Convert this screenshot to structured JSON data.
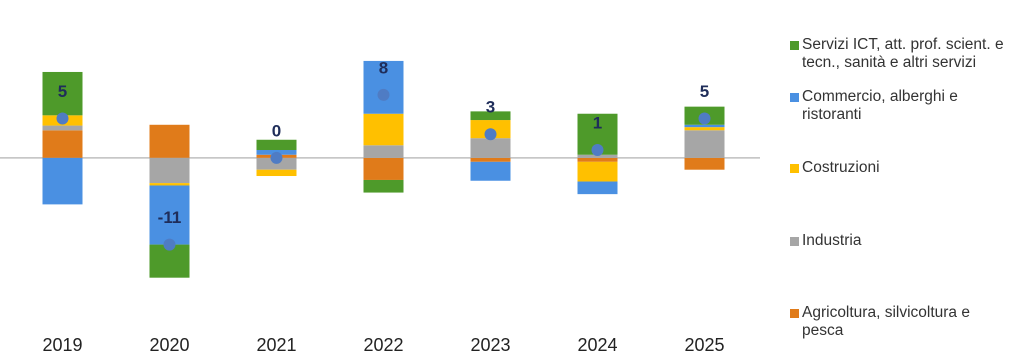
{
  "chart_data": {
    "type": "stacked-bar",
    "categories": [
      "2019",
      "2020",
      "2021",
      "2022",
      "2023",
      "2024",
      "2025"
    ],
    "series": [
      {
        "name": "Servizi ICT, att. prof. scient. e tecn., sanità e altri servizi",
        "color": "#4e9a2a",
        "values": [
          5.5,
          -4.2,
          1.3,
          -1.6,
          1.1,
          5.2,
          2.3
        ]
      },
      {
        "name": "Commercio, alberghi e ristoranti",
        "color": "#4a90e2",
        "values": [
          -5.9,
          -7.5,
          0.6,
          6.7,
          -2.4,
          -1.6,
          0.3
        ]
      },
      {
        "name": "Costruzioni",
        "color": "#ffc000",
        "values": [
          1.3,
          -0.3,
          -0.8,
          4.0,
          2.3,
          -2.5,
          0.4
        ]
      },
      {
        "name": "Industria",
        "color": "#a6a6a6",
        "values": [
          0.6,
          -3.2,
          -1.5,
          1.6,
          2.5,
          0.4,
          3.5
        ]
      },
      {
        "name": "Agricoltura, silvicoltura e pesca",
        "color": "#e07b1a",
        "values": [
          3.5,
          4.2,
          0.4,
          -2.8,
          -0.5,
          -0.5,
          -1.5
        ]
      }
    ],
    "totals": {
      "color": "#4f7cc4",
      "values": [
        5,
        -11,
        0,
        8,
        3,
        1,
        5
      ]
    },
    "ylim": [
      -16,
      18
    ]
  }
}
